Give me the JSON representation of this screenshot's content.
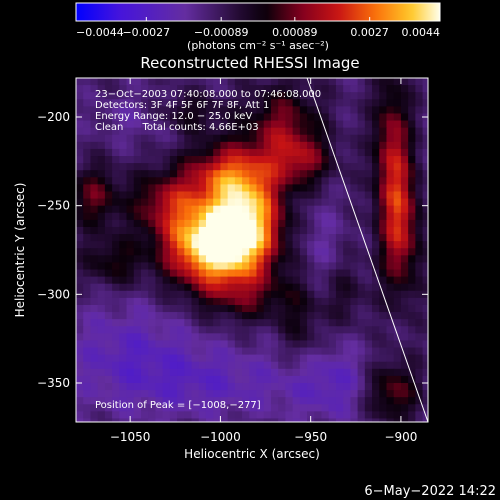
{
  "chart_data": {
    "type": "heatmap",
    "title": "Reconstructed RHESSI Image",
    "xlabel": "Heliocentric X (arcsec)",
    "ylabel": "Heliocentric Y (arcsec)",
    "xlim": [
      -1080,
      -885
    ],
    "ylim": [
      -372,
      -178
    ],
    "x_ticks": [
      {
        "value": -1050,
        "label": "−1050"
      },
      {
        "value": -1000,
        "label": "−1000"
      },
      {
        "value": -950,
        "label": "−950"
      },
      {
        "value": -900,
        "label": "−900"
      }
    ],
    "y_ticks": [
      {
        "value": -200,
        "label": "−200"
      },
      {
        "value": -250,
        "label": "−250"
      },
      {
        "value": -300,
        "label": "−300"
      },
      {
        "value": -350,
        "label": "−350"
      }
    ],
    "colorbar": {
      "min": -0.0044,
      "max": 0.0044,
      "units": "(photons cm⁻² s⁻¹ asec⁻²)",
      "tick_values": [
        -0.0044,
        -0.0027,
        -0.00089,
        0.00089,
        0.0027,
        0.0044
      ],
      "tick_labels": [
        "−0.0044",
        "−0.0027",
        "−0.00089",
        "0.00089",
        "0.0027",
        "0.0044"
      ]
    },
    "annotations": [
      "23−Oct−2003 07:40:08.000 to 07:46:08.000",
      "Detectors: 3F 4F 5F 6F 7F 8F, Att 1",
      "Energy Range: 12.0 − 25.0 keV",
      "Clean      Total counts: 4.66E+03"
    ],
    "peak_label": "Position of Peak = [−1008,−277]",
    "peak_position": [
      -1008,
      -277
    ],
    "limb_line": [
      [
        -952,
        -178
      ],
      [
        -885,
        -372
      ]
    ],
    "sources": [
      {
        "x": -1005,
        "y": -272,
        "amp": 0.0056,
        "sx": 18,
        "sy": 16
      },
      {
        "x": -985,
        "y": -255,
        "amp": 0.004,
        "sx": 14,
        "sy": 22
      },
      {
        "x": -1030,
        "y": -248,
        "amp": 0.002,
        "sx": 14,
        "sy": 12
      },
      {
        "x": -1000,
        "y": -232,
        "amp": 0.0022,
        "sx": 16,
        "sy": 12
      },
      {
        "x": -965,
        "y": -205,
        "amp": 0.002,
        "sx": 14,
        "sy": 16
      },
      {
        "x": -955,
        "y": -225,
        "amp": 0.0018,
        "sx": 12,
        "sy": 10
      },
      {
        "x": -985,
        "y": -302,
        "amp": 0.0012,
        "sx": 20,
        "sy": 10
      },
      {
        "x": -905,
        "y": -220,
        "amp": 0.0024,
        "sx": 7,
        "sy": 30
      },
      {
        "x": -900,
        "y": -265,
        "amp": 0.0024,
        "sx": 8,
        "sy": 26
      },
      {
        "x": -905,
        "y": -355,
        "amp": 0.002,
        "sx": 10,
        "sy": 12
      },
      {
        "x": -1070,
        "y": -245,
        "amp": 0.0018,
        "sx": 10,
        "sy": 12
      },
      {
        "x": -1060,
        "y": -282,
        "amp": 0.0014,
        "sx": 12,
        "sy": 10
      },
      {
        "x": -1020,
        "y": -198,
        "amp": 0.0014,
        "sx": 14,
        "sy": 8
      },
      {
        "x": -955,
        "y": -320,
        "amp": 0.001,
        "sx": 8,
        "sy": 18
      },
      {
        "x": -930,
        "y": -300,
        "amp": 0.0008,
        "sx": 8,
        "sy": 14
      },
      {
        "x": -1050,
        "y": -335,
        "amp": -0.0012,
        "sx": 28,
        "sy": 22
      },
      {
        "x": -1000,
        "y": -350,
        "amp": -0.001,
        "sx": 30,
        "sy": 14
      },
      {
        "x": -940,
        "y": -350,
        "amp": -0.0012,
        "sx": 18,
        "sy": 16
      },
      {
        "x": -1040,
        "y": -200,
        "amp": -0.0008,
        "sx": 18,
        "sy": 10
      },
      {
        "x": -945,
        "y": -270,
        "amp": -0.0006,
        "sx": 10,
        "sy": 18
      }
    ]
  },
  "footer": {
    "date": "6−May−2022 14:22"
  }
}
